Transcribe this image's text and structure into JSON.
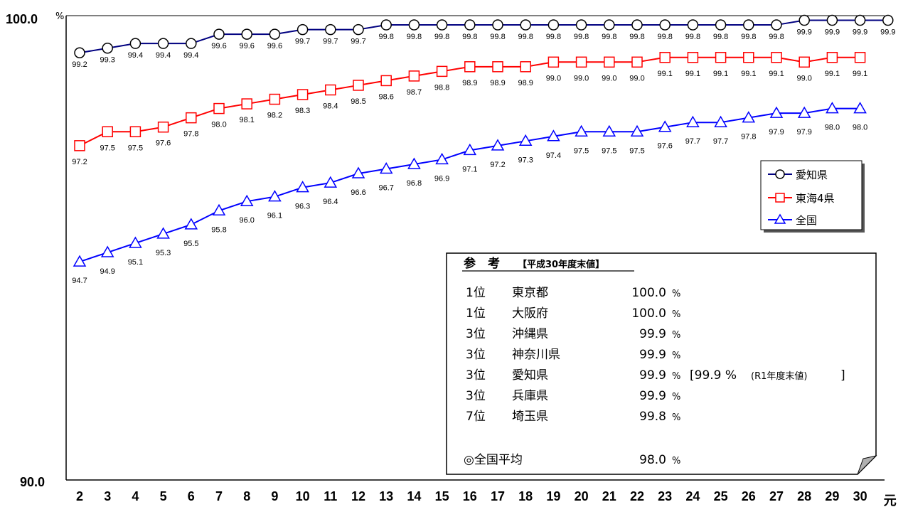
{
  "chart_data": {
    "type": "line",
    "y_axis": {
      "top_label": "100.0",
      "bottom_label": "90.0",
      "unit": "%",
      "ylim": [
        90.0,
        100.0
      ]
    },
    "x_ticks": [
      "2",
      "3",
      "4",
      "5",
      "6",
      "7",
      "8",
      "9",
      "10",
      "11",
      "12",
      "13",
      "14",
      "15",
      "16",
      "17",
      "18",
      "19",
      "20",
      "21",
      "22",
      "23",
      "24",
      "25",
      "26",
      "27",
      "28",
      "29",
      "30",
      "元"
    ],
    "series": [
      {
        "name": "愛知県",
        "color": "#000080",
        "marker": "circle",
        "values": [
          99.2,
          99.3,
          99.4,
          99.4,
          99.4,
          99.6,
          99.6,
          99.6,
          99.7,
          99.7,
          99.7,
          99.8,
          99.8,
          99.8,
          99.8,
          99.8,
          99.8,
          99.8,
          99.8,
          99.8,
          99.8,
          99.8,
          99.8,
          99.8,
          99.8,
          99.8,
          99.9,
          99.9,
          99.9,
          99.9
        ],
        "labels": [
          "99.2",
          "99.3",
          "99.4",
          "99.4",
          "99.4",
          "99.6",
          "99.6",
          "99.6",
          "99.7",
          "99.7",
          "99.7",
          "99.8",
          "99.8",
          "99.8",
          "99.8",
          "99.8",
          "99.8",
          "99.8",
          "99.8",
          "99.8",
          "99.8",
          "99.8",
          "99.8",
          "99.8",
          "99.8",
          "99.8",
          "99.9",
          "99.9",
          "99.9",
          "99.9"
        ]
      },
      {
        "name": "東海4県",
        "color": "#ff0000",
        "marker": "square",
        "values": [
          97.2,
          97.5,
          97.5,
          97.6,
          97.8,
          98.0,
          98.1,
          98.2,
          98.3,
          98.4,
          98.5,
          98.6,
          98.7,
          98.8,
          98.9,
          98.9,
          98.9,
          99.0,
          99.0,
          99.0,
          99.0,
          99.1,
          99.1,
          99.1,
          99.1,
          99.1,
          99.0,
          99.1,
          99.1
        ],
        "labels": [
          "97.2",
          "97.5",
          "97.5",
          "97.6",
          "97.8",
          "98.0",
          "98.1",
          "98.2",
          "98.3",
          "98.4",
          "98.5",
          "98.6",
          "98.7",
          "98.8",
          "98.9",
          "98.9",
          "98.9",
          "99.0",
          "99.0",
          "99.0",
          "99.0",
          "99.1",
          "99.1",
          "99.1",
          "99.1",
          "99.1",
          "99.0",
          "99.1",
          "99.1"
        ]
      },
      {
        "name": "全国",
        "color": "#0000ff",
        "marker": "triangle",
        "values": [
          94.7,
          94.9,
          95.1,
          95.3,
          95.5,
          95.8,
          96.0,
          96.1,
          96.3,
          96.4,
          96.6,
          96.7,
          96.8,
          96.9,
          97.1,
          97.2,
          97.3,
          97.4,
          97.5,
          97.5,
          97.5,
          97.6,
          97.7,
          97.7,
          97.8,
          97.9,
          97.9,
          98.0,
          98.0
        ],
        "labels": [
          "94.7",
          "94.9",
          "95.1",
          "95.3",
          "95.5",
          "95.8",
          "96.0",
          "96.1",
          "96.3",
          "96.4",
          "96.6",
          "96.7",
          "96.8",
          "96.9",
          "97.1",
          "97.2",
          "97.3",
          "97.4",
          "97.5",
          "97.5",
          "97.5",
          "97.6",
          "97.7",
          "97.7",
          "97.8",
          "97.9",
          "97.9",
          "98.0",
          "98.0"
        ]
      }
    ],
    "legend": {
      "position": "right",
      "items": [
        "愛知県",
        "東海4県",
        "全国"
      ]
    }
  },
  "reference": {
    "title": "参　考",
    "subtitle": "【平成30年度末値】",
    "rows": [
      {
        "rank": "1位",
        "name": "東京都",
        "value": "100.0",
        "unit": "%",
        "note": ""
      },
      {
        "rank": "1位",
        "name": "大阪府",
        "value": "100.0",
        "unit": "%",
        "note": ""
      },
      {
        "rank": "3位",
        "name": "沖縄県",
        "value": "99.9",
        "unit": "%",
        "note": ""
      },
      {
        "rank": "3位",
        "name": "神奈川県",
        "value": "99.9",
        "unit": "%",
        "note": ""
      },
      {
        "rank": "3位",
        "name": "愛知県",
        "value": "99.9",
        "unit": "%",
        "note_open": "[99.9 %",
        "note_small": "(R1年度末値)",
        "note_close": "]"
      },
      {
        "rank": "3位",
        "name": "兵庫県",
        "value": "99.9",
        "unit": "%",
        "note": ""
      },
      {
        "rank": "7位",
        "name": "埼玉県",
        "value": "99.8",
        "unit": "%",
        "note": ""
      }
    ],
    "average": {
      "label": "◎全国平均",
      "value": "98.0",
      "unit": "%"
    }
  }
}
